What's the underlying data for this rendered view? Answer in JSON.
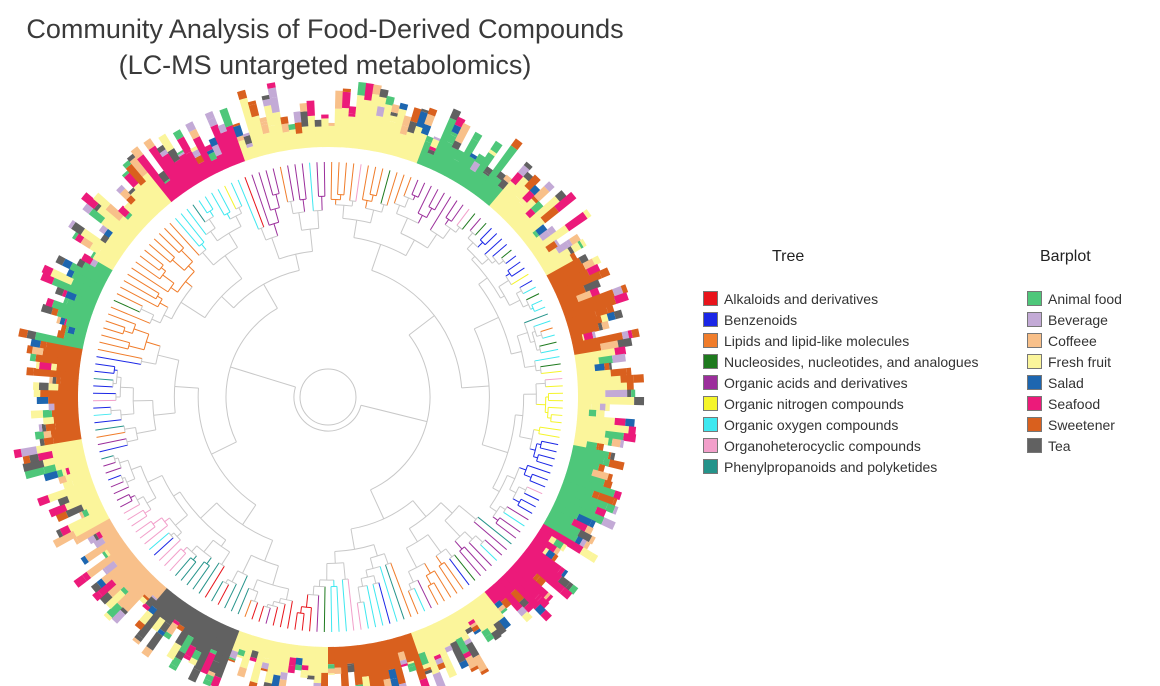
{
  "title": {
    "line1": "Community Analysis of Food-Derived  Compounds",
    "line2": "(LC-MS untargeted metabolomics)"
  },
  "legend": {
    "tree_heading": "Tree",
    "barplot_heading": "Barplot",
    "tree_items": [
      {
        "label": "Alkaloids and derivatives",
        "color": "#e8141b"
      },
      {
        "label": "Benzenoids",
        "color": "#1a26e6"
      },
      {
        "label": "Lipids and lipid-like molecules",
        "color": "#f07c2a"
      },
      {
        "label": "Nucleosides, nucleotides, and analogues",
        "color": "#1e7a1e"
      },
      {
        "label": "Organic acids and derivatives",
        "color": "#9b2e9b"
      },
      {
        "label": "Organic nitrogen compounds",
        "color": "#f5f52a"
      },
      {
        "label": "Organic oxygen compounds",
        "color": "#3ee8f0"
      },
      {
        "label": "Organoheterocyclic compounds",
        "color": "#f29fca"
      },
      {
        "label": "Phenylpropanoids and polyketides",
        "color": "#24938a"
      }
    ],
    "barplot_items": [
      {
        "label": "Animal food",
        "color": "#4ec77a"
      },
      {
        "label": "Beverage",
        "color": "#c3aad6"
      },
      {
        "label": "Coffeee",
        "color": "#f8c08a"
      },
      {
        "label": "Fresh fruit",
        "color": "#fbf59b"
      },
      {
        "label": "Salad",
        "color": "#1d66b0"
      },
      {
        "label": "Seafood",
        "color": "#ec1a7a"
      },
      {
        "label": "Sweetener",
        "color": "#d9601e"
      },
      {
        "label": "Tea",
        "color": "#616161"
      }
    ]
  }
}
